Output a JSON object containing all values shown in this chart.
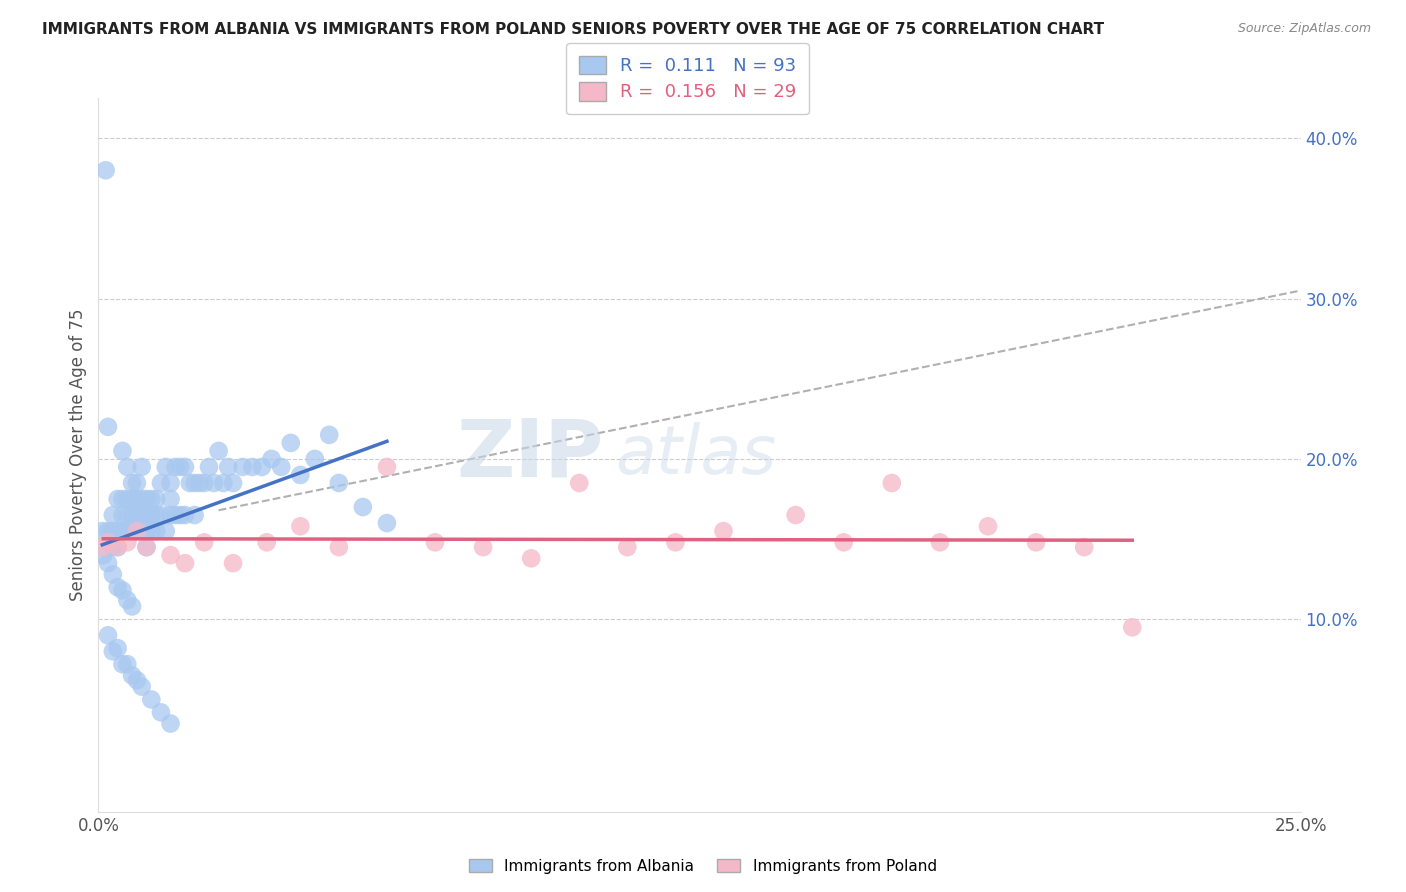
{
  "title": "IMMIGRANTS FROM ALBANIA VS IMMIGRANTS FROM POLAND SENIORS POVERTY OVER THE AGE OF 75 CORRELATION CHART",
  "source": "Source: ZipAtlas.com",
  "ylabel": "Seniors Poverty Over the Age of 75",
  "xlim": [
    0.0,
    0.25
  ],
  "ylim": [
    -0.02,
    0.425
  ],
  "ytick_values_right": [
    0.1,
    0.2,
    0.3,
    0.4
  ],
  "ytick_labels_right": [
    "10.0%",
    "20.0%",
    "30.0%",
    "40.0%"
  ],
  "albania_color": "#a8c8f0",
  "poland_color": "#f5b8c8",
  "albania_line_color": "#4472c4",
  "poland_line_color": "#e06080",
  "R_albania": 0.111,
  "N_albania": 93,
  "R_poland": 0.156,
  "N_poland": 29,
  "legend_label_albania": "Immigrants from Albania",
  "legend_label_poland": "Immigrants from Poland",
  "albania_x": [
    0.0008,
    0.0015,
    0.002,
    0.002,
    0.003,
    0.003,
    0.003,
    0.004,
    0.004,
    0.004,
    0.005,
    0.005,
    0.005,
    0.005,
    0.006,
    0.006,
    0.006,
    0.006,
    0.007,
    0.007,
    0.007,
    0.007,
    0.008,
    0.008,
    0.008,
    0.008,
    0.009,
    0.009,
    0.009,
    0.01,
    0.01,
    0.01,
    0.01,
    0.011,
    0.011,
    0.011,
    0.012,
    0.012,
    0.012,
    0.013,
    0.013,
    0.014,
    0.014,
    0.015,
    0.015,
    0.015,
    0.016,
    0.016,
    0.017,
    0.017,
    0.018,
    0.018,
    0.019,
    0.02,
    0.02,
    0.021,
    0.022,
    0.023,
    0.024,
    0.025,
    0.026,
    0.027,
    0.028,
    0.03,
    0.032,
    0.034,
    0.036,
    0.038,
    0.04,
    0.042,
    0.045,
    0.048,
    0.05,
    0.055,
    0.06,
    0.001,
    0.002,
    0.003,
    0.004,
    0.005,
    0.006,
    0.007,
    0.003,
    0.005,
    0.007,
    0.009,
    0.011,
    0.013,
    0.015,
    0.002,
    0.004,
    0.006,
    0.008
  ],
  "albania_y": [
    0.155,
    0.38,
    0.22,
    0.155,
    0.165,
    0.155,
    0.145,
    0.175,
    0.155,
    0.145,
    0.205,
    0.175,
    0.165,
    0.155,
    0.195,
    0.175,
    0.165,
    0.155,
    0.185,
    0.175,
    0.165,
    0.155,
    0.185,
    0.175,
    0.165,
    0.155,
    0.195,
    0.175,
    0.165,
    0.175,
    0.165,
    0.155,
    0.145,
    0.175,
    0.165,
    0.155,
    0.175,
    0.165,
    0.155,
    0.185,
    0.165,
    0.195,
    0.155,
    0.185,
    0.175,
    0.165,
    0.195,
    0.165,
    0.195,
    0.165,
    0.195,
    0.165,
    0.185,
    0.185,
    0.165,
    0.185,
    0.185,
    0.195,
    0.185,
    0.205,
    0.185,
    0.195,
    0.185,
    0.195,
    0.195,
    0.195,
    0.2,
    0.195,
    0.21,
    0.19,
    0.2,
    0.215,
    0.185,
    0.17,
    0.16,
    0.14,
    0.135,
    0.128,
    0.12,
    0.118,
    0.112,
    0.108,
    0.08,
    0.072,
    0.065,
    0.058,
    0.05,
    0.042,
    0.035,
    0.09,
    0.082,
    0.072,
    0.062
  ],
  "poland_x": [
    0.001,
    0.002,
    0.004,
    0.006,
    0.008,
    0.01,
    0.015,
    0.018,
    0.022,
    0.028,
    0.035,
    0.042,
    0.05,
    0.06,
    0.07,
    0.08,
    0.09,
    0.1,
    0.11,
    0.12,
    0.13,
    0.145,
    0.155,
    0.165,
    0.175,
    0.185,
    0.195,
    0.205,
    0.215
  ],
  "poland_y": [
    0.145,
    0.148,
    0.145,
    0.148,
    0.155,
    0.145,
    0.14,
    0.135,
    0.148,
    0.135,
    0.148,
    0.158,
    0.145,
    0.195,
    0.148,
    0.145,
    0.138,
    0.185,
    0.145,
    0.148,
    0.155,
    0.165,
    0.148,
    0.185,
    0.148,
    0.158,
    0.148,
    0.145,
    0.095
  ],
  "dash_line_x": [
    0.025,
    0.25
  ],
  "dash_line_y": [
    0.168,
    0.305
  ]
}
